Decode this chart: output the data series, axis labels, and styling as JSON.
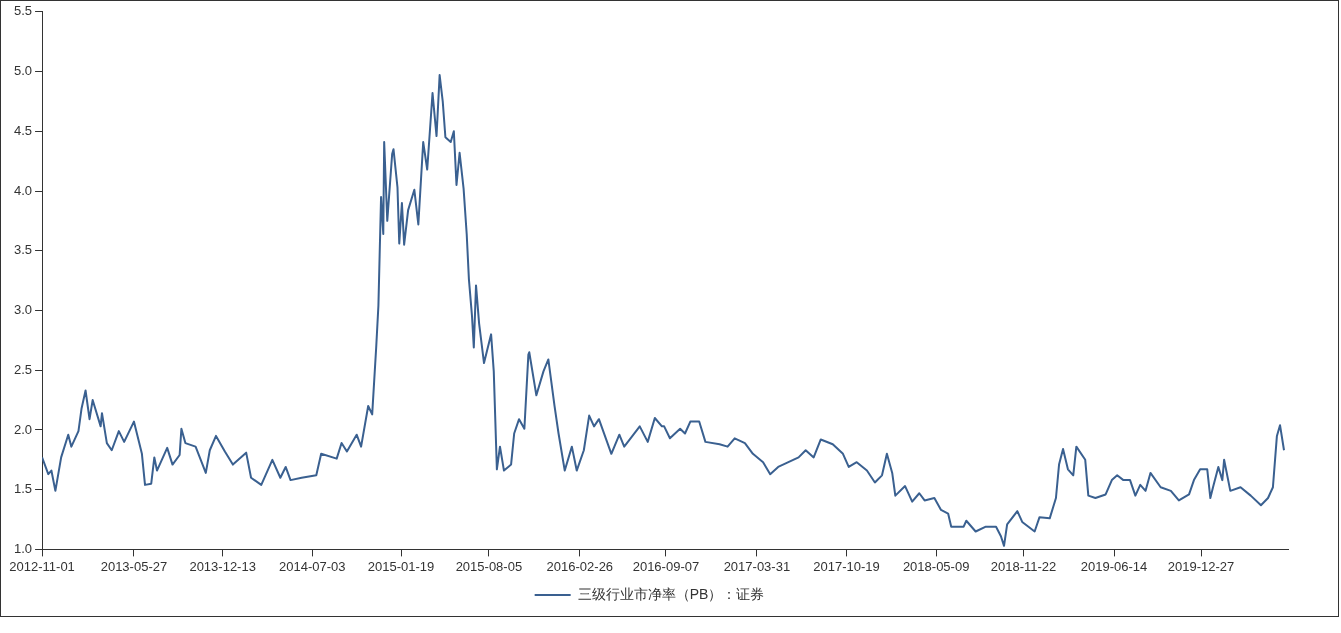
{
  "chart_data": {
    "type": "line",
    "x": [
      "2012-11-01",
      "2012-11-15",
      "2012-11-22",
      "2012-12-01",
      "2012-12-07",
      "2012-12-14",
      "2012-12-30",
      "2013-01-06",
      "2013-01-22",
      "2013-01-29",
      "2013-02-07",
      "2013-02-16",
      "2013-02-23",
      "2013-03-13",
      "2013-03-16",
      "2013-03-27",
      "2013-04-07",
      "2013-04-23",
      "2013-05-05",
      "2013-05-27",
      "2013-06-14",
      "2013-06-21",
      "2013-07-05",
      "2013-07-12",
      "2013-07-18",
      "2013-08-10",
      "2013-08-22",
      "2013-09-07",
      "2013-09-11",
      "2013-09-20",
      "2013-10-13",
      "2013-11-05",
      "2013-11-14",
      "2013-11-28",
      "2013-12-18",
      "2014-01-05",
      "2014-02-04",
      "2014-02-15",
      "2014-03-10",
      "2014-04-04",
      "2014-04-22",
      "2014-05-04",
      "2014-05-15",
      "2014-06-09",
      "2014-07-12",
      "2014-07-23",
      "2014-08-27",
      "2014-09-07",
      "2014-09-19",
      "2014-10-11",
      "2014-10-21",
      "2014-11-06",
      "2014-11-15",
      "2014-11-24",
      "2014-11-29",
      "2014-12-05",
      "2014-12-10",
      "2014-12-12",
      "2014-12-19",
      "2014-12-30",
      "2015-01-02",
      "2015-01-11",
      "2015-01-15",
      "2015-01-21",
      "2015-01-26",
      "2015-02-04",
      "2015-02-18",
      "2015-02-27",
      "2015-03-10",
      "2015-03-19",
      "2015-03-31",
      "2015-04-09",
      "2015-04-16",
      "2015-04-23",
      "2015-04-29",
      "2015-05-11",
      "2015-05-18",
      "2015-05-24",
      "2015-05-31",
      "2015-06-09",
      "2015-06-16",
      "2015-06-21",
      "2015-06-28",
      "2015-07-02",
      "2015-07-07",
      "2015-07-14",
      "2015-07-25",
      "2015-08-10",
      "2015-08-16",
      "2015-08-23",
      "2015-08-30",
      "2015-09-08",
      "2015-09-24",
      "2015-10-01",
      "2015-10-12",
      "2015-10-24",
      "2015-11-02",
      "2015-11-04",
      "2015-11-20",
      "2015-12-06",
      "2015-12-17",
      "2015-12-31",
      "2016-01-09",
      "2016-01-23",
      "2016-02-08",
      "2016-02-19",
      "2016-03-06",
      "2016-03-18",
      "2016-03-29",
      "2016-04-09",
      "2016-05-07",
      "2016-05-25",
      "2016-06-05",
      "2016-07-10",
      "2016-07-28",
      "2016-08-13",
      "2016-08-29",
      "2016-09-03",
      "2016-09-16",
      "2016-10-09",
      "2016-10-20",
      "2016-11-01",
      "2016-11-21",
      "2016-12-05",
      "2017-01-06",
      "2017-01-24",
      "2017-02-09",
      "2017-03-04",
      "2017-03-22",
      "2017-04-14",
      "2017-04-30",
      "2017-05-18",
      "2017-06-10",
      "2017-07-03",
      "2017-07-19",
      "2017-08-06",
      "2017-08-22",
      "2017-09-18",
      "2017-10-11",
      "2017-10-24",
      "2017-11-11",
      "2017-12-04",
      "2017-12-22",
      "2018-01-07",
      "2018-01-18",
      "2018-01-30",
      "2018-02-06",
      "2018-02-28",
      "2018-03-16",
      "2018-04-01",
      "2018-04-13",
      "2018-05-05",
      "2018-05-20",
      "2018-06-05",
      "2018-06-12",
      "2018-07-10",
      "2018-07-16",
      "2018-08-06",
      "2018-08-29",
      "2018-09-21",
      "2018-10-02",
      "2018-10-09",
      "2018-10-16",
      "2018-11-08",
      "2018-11-19",
      "2018-12-17",
      "2018-12-28",
      "2019-01-20",
      "2019-02-03",
      "2019-02-10",
      "2019-02-19",
      "2019-03-02",
      "2019-03-14",
      "2019-03-21",
      "2019-04-10",
      "2019-04-17",
      "2019-05-03",
      "2019-05-26",
      "2019-06-09",
      "2019-06-21",
      "2019-07-05",
      "2019-07-20",
      "2019-08-01",
      "2019-08-12",
      "2019-08-24",
      "2019-09-04",
      "2019-09-27",
      "2019-10-20",
      "2019-11-07",
      "2019-11-30",
      "2019-12-11",
      "2019-12-25",
      "2020-01-10",
      "2020-01-17",
      "2020-01-23",
      "2020-02-04",
      "2020-02-13",
      "2020-02-17",
      "2020-03-02",
      "2020-03-25",
      "2020-04-17",
      "2020-05-10",
      "2020-05-26",
      "2020-06-06",
      "2020-06-15",
      "2020-06-22",
      "2020-07-01"
    ],
    "series": [
      {
        "name": "三级行业市净率（PB）：证券",
        "color": "#3a6090",
        "values": [
          1.77,
          1.63,
          1.66,
          1.49,
          1.62,
          1.77,
          1.96,
          1.86,
          1.99,
          2.18,
          2.33,
          2.09,
          2.25,
          2.03,
          2.14,
          1.89,
          1.83,
          1.99,
          1.9,
          2.07,
          1.8,
          1.54,
          1.55,
          1.77,
          1.66,
          1.85,
          1.71,
          1.79,
          2.01,
          1.89,
          1.86,
          1.64,
          1.83,
          1.95,
          1.82,
          1.71,
          1.81,
          1.6,
          1.54,
          1.75,
          1.6,
          1.69,
          1.58,
          1.6,
          1.62,
          1.8,
          1.76,
          1.89,
          1.82,
          1.96,
          1.86,
          2.2,
          2.13,
          2.69,
          3.04,
          3.95,
          3.64,
          4.41,
          3.75,
          4.31,
          4.35,
          4.03,
          3.56,
          3.9,
          3.55,
          3.84,
          4.01,
          3.72,
          4.41,
          4.18,
          4.82,
          4.46,
          4.97,
          4.75,
          4.45,
          4.41,
          4.5,
          4.05,
          4.32,
          4.02,
          3.64,
          3.26,
          2.95,
          2.69,
          3.21,
          2.89,
          2.56,
          2.8,
          2.49,
          1.67,
          1.86,
          1.66,
          1.71,
          1.97,
          2.09,
          2.01,
          2.63,
          2.65,
          2.29,
          2.49,
          2.59,
          2.2,
          1.97,
          1.66,
          1.86,
          1.66,
          1.83,
          2.12,
          2.03,
          2.09,
          1.8,
          1.96,
          1.86,
          2.03,
          1.9,
          2.1,
          2.03,
          2.03,
          1.93,
          2.01,
          1.97,
          2.07,
          2.07,
          1.9,
          1.88,
          1.86,
          1.93,
          1.89,
          1.8,
          1.73,
          1.63,
          1.69,
          1.73,
          1.77,
          1.83,
          1.77,
          1.92,
          1.88,
          1.8,
          1.69,
          1.73,
          1.66,
          1.56,
          1.62,
          1.8,
          1.64,
          1.45,
          1.53,
          1.4,
          1.47,
          1.41,
          1.43,
          1.33,
          1.3,
          1.19,
          1.19,
          1.24,
          1.15,
          1.19,
          1.19,
          1.11,
          1.03,
          1.21,
          1.32,
          1.23,
          1.15,
          1.27,
          1.26,
          1.43,
          1.71,
          1.84,
          1.67,
          1.62,
          1.86,
          1.75,
          1.45,
          1.43,
          1.46,
          1.58,
          1.62,
          1.58,
          1.58,
          1.45,
          1.54,
          1.49,
          1.64,
          1.52,
          1.49,
          1.41,
          1.46,
          1.58,
          1.67,
          1.67,
          1.43,
          1.52,
          1.69,
          1.58,
          1.75,
          1.49,
          1.52,
          1.45,
          1.37,
          1.43,
          1.52,
          1.95,
          2.04,
          1.83
        ]
      }
    ],
    "xlim": [
      "2012-11-01",
      "2020-07-10"
    ],
    "xticks": [
      "2012-11-01",
      "2013-05-27",
      "2013-12-13",
      "2014-07-03",
      "2015-01-19",
      "2015-08-05",
      "2016-02-26",
      "2016-09-07",
      "2017-03-31",
      "2017-10-19",
      "2018-05-09",
      "2018-11-22",
      "2019-06-14",
      "2019-12-27"
    ],
    "ylim": [
      1.0,
      5.5
    ],
    "yticks": [
      {
        "value": 1,
        "label": "1.0"
      },
      {
        "value": 1.5,
        "label": "1.5"
      },
      {
        "value": 2,
        "label": "2.0"
      },
      {
        "value": 2.5,
        "label": "2.5"
      },
      {
        "value": 3,
        "label": "3.0"
      },
      {
        "value": 3.5,
        "label": "3.5"
      },
      {
        "value": 4,
        "label": "4.0"
      },
      {
        "value": 4.5,
        "label": "4.5"
      },
      {
        "value": 5,
        "label": "5.0"
      },
      {
        "value": 5.5,
        "label": "5.5"
      }
    ],
    "grid": false,
    "legend": "bottom",
    "marker": "none",
    "line_style": "solid"
  }
}
